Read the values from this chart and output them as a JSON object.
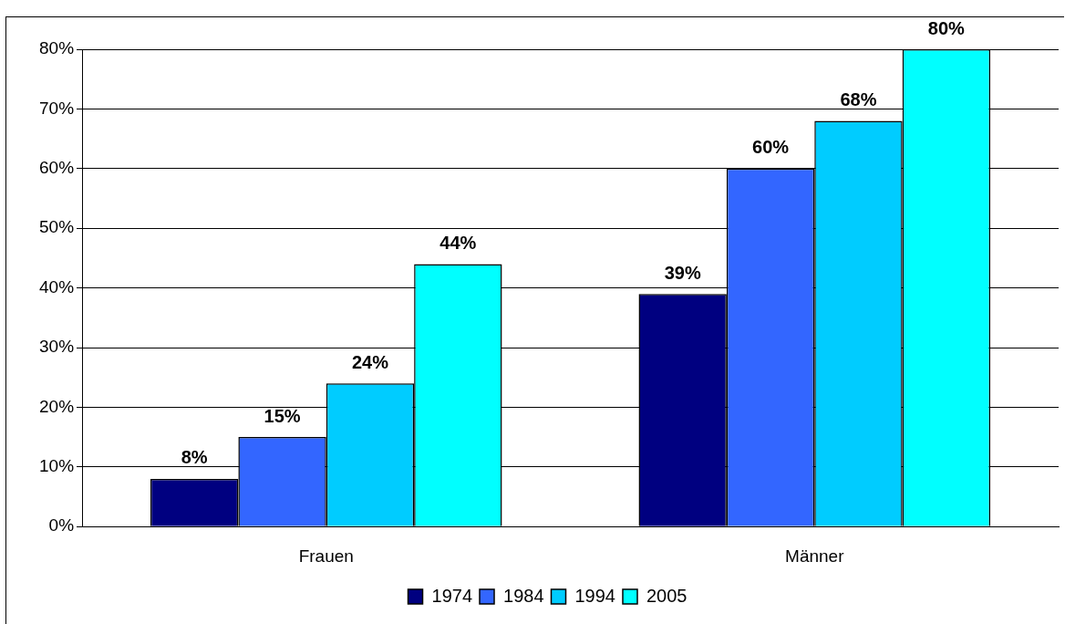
{
  "chart_data": {
    "type": "bar",
    "categories": [
      "Frauen",
      "Männer"
    ],
    "series": [
      {
        "name": "1974",
        "color": "#000080",
        "values": [
          8,
          39
        ]
      },
      {
        "name": "1984",
        "color": "#3366ff",
        "values": [
          15,
          60
        ]
      },
      {
        "name": "1994",
        "color": "#00ccff",
        "values": [
          24,
          68
        ]
      },
      {
        "name": "2005",
        "color": "#00ffff",
        "values": [
          44,
          80
        ]
      }
    ],
    "ylim": [
      0,
      80
    ],
    "yticks": [
      {
        "value": 0,
        "label": "0%"
      },
      {
        "value": 10,
        "label": "10%"
      },
      {
        "value": 20,
        "label": "20%"
      },
      {
        "value": 30,
        "label": "30%"
      },
      {
        "value": 40,
        "label": "40%"
      },
      {
        "value": 50,
        "label": "50%"
      },
      {
        "value": 60,
        "label": "60%"
      },
      {
        "value": 70,
        "label": "70%"
      },
      {
        "value": 80,
        "label": "80%"
      }
    ],
    "value_labels": [
      [
        "8%",
        "39%"
      ],
      [
        "15%",
        "60%"
      ],
      [
        "24%",
        "68%"
      ],
      [
        "44%",
        "80%"
      ]
    ],
    "grid": "y",
    "legend": "bottom"
  }
}
